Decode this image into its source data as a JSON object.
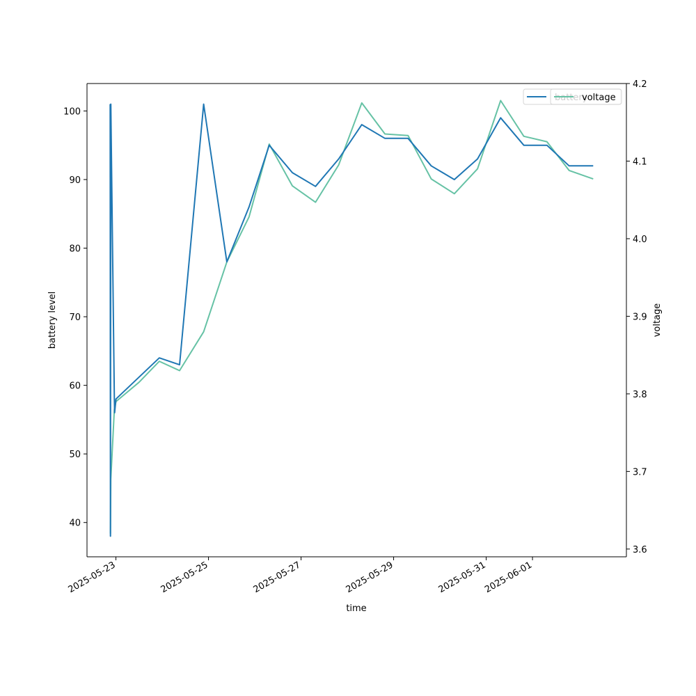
{
  "chart_data": {
    "type": "line",
    "xlabel": "time",
    "ylabel_left": "battery level",
    "ylabel_right": "voltage",
    "grid": false,
    "legend_placement": "top-right",
    "x_ticks": [
      "2025-05-23",
      "2025-05-25",
      "2025-05-27",
      "2025-05-29",
      "2025-05-31",
      "2025-06-01"
    ],
    "y_left_ticks": [
      40,
      50,
      60,
      70,
      80,
      90,
      100
    ],
    "y_right_ticks": [
      "3.6",
      "3.7",
      "3.8",
      "3.9",
      "4.0",
      "4.1",
      "4.2"
    ],
    "y_left_lim": [
      35,
      104
    ],
    "y_right_lim": [
      3.59,
      4.2
    ],
    "series": [
      {
        "name": "battery",
        "axis": "left",
        "color": "#1f77b4",
        "points": [
          [
            "2025-05-22 21:00",
            101
          ],
          [
            "2025-05-22 21:10",
            38
          ],
          [
            "2025-05-22 21:20",
            101
          ],
          [
            "2025-05-22 23:10",
            58
          ],
          [
            "2025-05-22 23:20",
            56
          ],
          [
            "2025-05-23 00:00",
            58
          ],
          [
            "2025-05-23 22:30",
            64
          ],
          [
            "2025-05-24 09:00",
            63
          ],
          [
            "2025-05-24 21:30",
            101
          ],
          [
            "2025-05-25 09:30",
            78
          ],
          [
            "2025-05-25 21:00",
            86
          ],
          [
            "2025-05-26 07:30",
            95
          ],
          [
            "2025-05-26 19:30",
            91
          ],
          [
            "2025-05-27 07:30",
            89
          ],
          [
            "2025-05-27 19:30",
            93
          ],
          [
            "2025-05-28 07:30",
            98
          ],
          [
            "2025-05-28 19:30",
            96
          ],
          [
            "2025-05-29 07:30",
            96
          ],
          [
            "2025-05-29 19:30",
            92
          ],
          [
            "2025-05-30 07:30",
            90
          ],
          [
            "2025-05-30 19:30",
            93
          ],
          [
            "2025-05-31 07:30",
            99
          ],
          [
            "2025-05-31 19:30",
            95
          ],
          [
            "2025-06-01 07:30",
            95
          ],
          [
            "2025-06-01 19:00",
            92
          ],
          [
            "2025-06-02 07:30",
            92
          ]
        ]
      },
      {
        "name": "voltage",
        "axis": "right",
        "color": "#66c2a5",
        "points": [
          [
            "2025-05-22 21:00",
            3.62
          ],
          [
            "2025-05-22 21:10",
            3.62
          ],
          [
            "2025-05-22 21:20",
            3.69
          ],
          [
            "2025-05-22 23:10",
            3.78
          ],
          [
            "2025-05-23 00:00",
            3.79
          ],
          [
            "2025-05-23 12:00",
            3.815
          ],
          [
            "2025-05-23 22:30",
            3.842
          ],
          [
            "2025-05-24 09:00",
            3.83
          ],
          [
            "2025-05-24 21:30",
            3.88
          ],
          [
            "2025-05-25 09:30",
            3.97
          ],
          [
            "2025-05-25 21:00",
            4.028
          ],
          [
            "2025-05-26 07:30",
            4.122
          ],
          [
            "2025-05-26 19:30",
            4.068
          ],
          [
            "2025-05-27 07:30",
            4.047
          ],
          [
            "2025-05-27 19:30",
            4.095
          ],
          [
            "2025-05-28 07:30",
            4.175
          ],
          [
            "2025-05-28 19:30",
            4.135
          ],
          [
            "2025-05-29 07:30",
            4.133
          ],
          [
            "2025-05-29 19:30",
            4.077
          ],
          [
            "2025-05-30 07:30",
            4.058
          ],
          [
            "2025-05-30 19:30",
            4.09
          ],
          [
            "2025-05-31 07:30",
            4.178
          ],
          [
            "2025-05-31 19:30",
            4.132
          ],
          [
            "2025-06-01 07:30",
            4.125
          ],
          [
            "2025-06-01 19:00",
            4.088
          ],
          [
            "2025-06-02 07:30",
            4.077
          ]
        ]
      }
    ]
  }
}
